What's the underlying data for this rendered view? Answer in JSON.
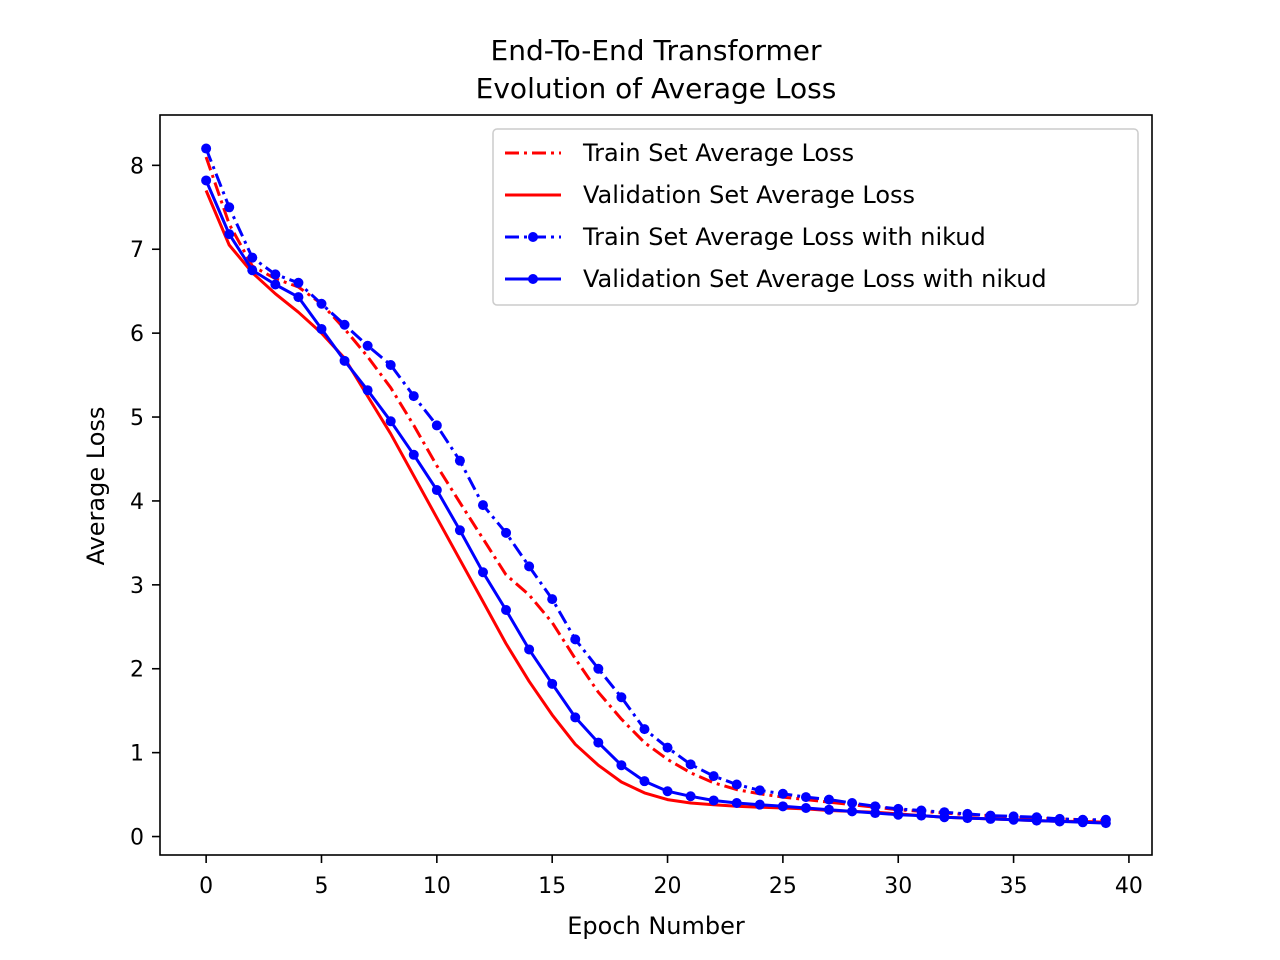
{
  "chart_data": {
    "type": "line",
    "title": [
      "End-To-End Transformer",
      "Evolution of Average Loss"
    ],
    "xlabel": "Epoch Number",
    "ylabel": "Average Loss",
    "xlim": [
      -2,
      41
    ],
    "ylim": [
      -0.22,
      8.6
    ],
    "xticks": [
      0,
      5,
      10,
      15,
      20,
      25,
      30,
      35,
      40
    ],
    "yticks": [
      0,
      1,
      2,
      3,
      4,
      5,
      6,
      7,
      8
    ],
    "grid": false,
    "legend_position": "upper-right",
    "x": [
      0,
      1,
      2,
      3,
      4,
      5,
      6,
      7,
      8,
      9,
      10,
      11,
      12,
      13,
      14,
      15,
      16,
      17,
      18,
      19,
      20,
      21,
      22,
      23,
      24,
      25,
      26,
      27,
      28,
      29,
      30,
      31,
      32,
      33,
      34,
      35,
      36,
      37,
      38,
      39
    ],
    "series": [
      {
        "name": "Train Set Average Loss",
        "color": "#ff0000",
        "dash": "dashdot",
        "marker": false,
        "values": [
          8.1,
          7.3,
          6.8,
          6.65,
          6.55,
          6.35,
          6.05,
          5.72,
          5.35,
          4.9,
          4.42,
          3.98,
          3.55,
          3.12,
          2.88,
          2.55,
          2.12,
          1.72,
          1.4,
          1.12,
          0.92,
          0.76,
          0.64,
          0.56,
          0.51,
          0.47,
          0.44,
          0.41,
          0.38,
          0.35,
          0.32,
          0.3,
          0.28,
          0.26,
          0.25,
          0.23,
          0.22,
          0.21,
          0.2,
          0.19
        ]
      },
      {
        "name": "Validation Set Average Loss",
        "color": "#ff0000",
        "dash": "solid",
        "marker": false,
        "values": [
          7.7,
          7.05,
          6.72,
          6.47,
          6.25,
          6.0,
          5.7,
          5.25,
          4.8,
          4.3,
          3.8,
          3.3,
          2.8,
          2.3,
          1.85,
          1.45,
          1.1,
          0.85,
          0.65,
          0.52,
          0.44,
          0.4,
          0.38,
          0.36,
          0.35,
          0.34,
          0.33,
          0.31,
          0.3,
          0.29,
          0.27,
          0.25,
          0.23,
          0.22,
          0.21,
          0.2,
          0.19,
          0.18,
          0.18,
          0.17
        ]
      },
      {
        "name": "Train Set Average Loss  with nikud",
        "color": "#0000ff",
        "dash": "dashdot",
        "marker": true,
        "values": [
          8.2,
          7.5,
          6.9,
          6.7,
          6.6,
          6.35,
          6.1,
          5.85,
          5.62,
          5.25,
          4.9,
          4.48,
          3.95,
          3.62,
          3.22,
          2.83,
          2.35,
          2.0,
          1.66,
          1.28,
          1.06,
          0.86,
          0.72,
          0.62,
          0.55,
          0.51,
          0.47,
          0.44,
          0.4,
          0.36,
          0.33,
          0.31,
          0.29,
          0.27,
          0.25,
          0.24,
          0.23,
          0.21,
          0.2,
          0.2
        ]
      },
      {
        "name": "Validation Set Average Loss  with nikud",
        "color": "#0000ff",
        "dash": "solid",
        "marker": true,
        "values": [
          7.82,
          7.18,
          6.75,
          6.58,
          6.43,
          6.05,
          5.67,
          5.32,
          4.95,
          4.55,
          4.13,
          3.65,
          3.15,
          2.7,
          2.23,
          1.82,
          1.42,
          1.12,
          0.85,
          0.66,
          0.54,
          0.48,
          0.43,
          0.4,
          0.38,
          0.36,
          0.34,
          0.32,
          0.3,
          0.28,
          0.26,
          0.25,
          0.23,
          0.22,
          0.21,
          0.2,
          0.19,
          0.18,
          0.17,
          0.16
        ]
      }
    ]
  }
}
